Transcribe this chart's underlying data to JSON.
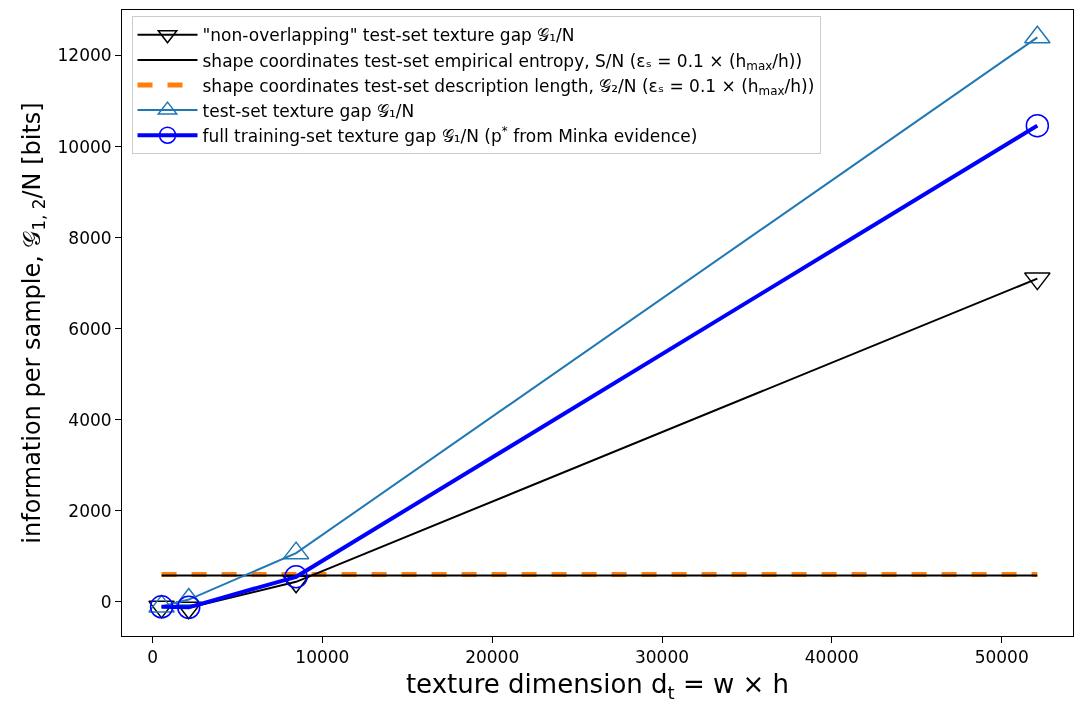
{
  "chart_data": {
    "type": "line",
    "xlabel": "texture dimension d$_{t}$ = w × h",
    "ylabel": "information per sample, 𝒢$_{1, 2}$/N [bits]",
    "x": [
      530,
      2130,
      8450,
      52100
    ],
    "series": [
      {
        "name": "\"non-overlapping\" test-set texture gap 𝒢₁/N",
        "color": "#000000",
        "marker": "triangle-down",
        "line_style": "solid",
        "values": [
          -110,
          -130,
          440,
          7100
        ]
      },
      {
        "name": "shape coordinates test-set empirical entropy, S/N (εₛ = 0.1 × (h$_{max}$/h))",
        "color": "#000000",
        "marker": "none",
        "line_style": "solid",
        "values": [
          580,
          580,
          580,
          580
        ]
      },
      {
        "name": "shape coordinates test-set description length, 𝒢₂/N (εₛ = 0.1 × (h$_{max}$/h))",
        "color": "#ff7f0e",
        "marker": "none",
        "line_style": "dashed",
        "values": [
          600,
          600,
          600,
          600
        ]
      },
      {
        "name": "test-set texture gap 𝒢₁/N",
        "color": "#1f77b4",
        "marker": "triangle",
        "line_style": "solid",
        "values": [
          -100,
          50,
          1070,
          12400
        ]
      },
      {
        "name": "full training-set texture gap 𝒢₁/N (p$^{*}$ from Minka evidence)",
        "color": "#0000ff",
        "marker": "circle",
        "line_style": "solid",
        "values": [
          -110,
          -120,
          550,
          10460
        ]
      }
    ],
    "xlim": [
      -1800,
      54200
    ],
    "xticks": [
      0,
      10000,
      20000,
      30000,
      40000,
      50000
    ],
    "ylim": [
      -750,
      13000
    ],
    "yticks": [
      0,
      2000,
      4000,
      6000,
      8000,
      10000,
      12000
    ],
    "grid": false,
    "legend": "top left"
  }
}
